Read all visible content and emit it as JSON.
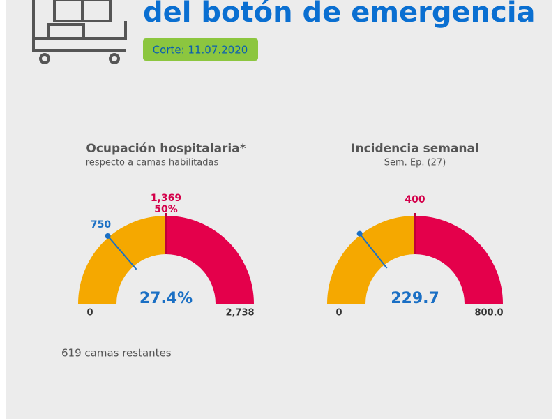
{
  "header": {
    "title": "del botón de emergencia",
    "badge": "Corte: 11.07.2020"
  },
  "chart_data": [
    {
      "type": "gauge",
      "title": "Ocupación hospitalaria*",
      "subtitle": "respecto a camas habilitadas",
      "range": [
        0,
        2738
      ],
      "range_labels": [
        "0",
        "2,738"
      ],
      "threshold": 1369,
      "threshold_label": "1,369",
      "threshold_percent": 50,
      "threshold_percent_label": "50%",
      "value": 750,
      "percent": 27.4,
      "percent_label": "27.4%",
      "colors": [
        "#f5a800",
        "#e4004b"
      ],
      "marker_color": "#1a6fc4",
      "note": "619 camas restantes"
    },
    {
      "type": "gauge",
      "title": "Incidencia semanal",
      "subtitle": "Sem. Ep. (27)",
      "range": [
        0,
        800
      ],
      "range_labels": [
        "0",
        "800.0"
      ],
      "threshold": 400,
      "threshold_label": "400",
      "value": 229.7,
      "colors": [
        "#f5a800",
        "#e4004b"
      ],
      "marker_color": "#1a6fc4"
    }
  ]
}
